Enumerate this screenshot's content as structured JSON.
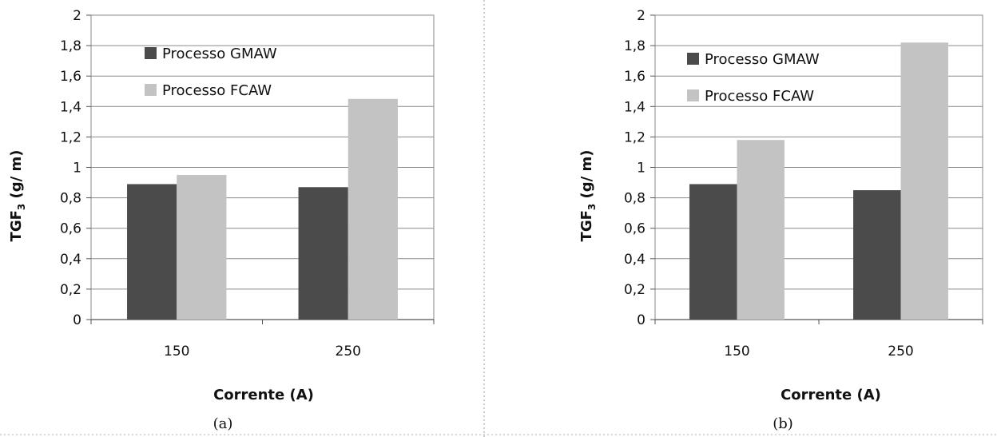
{
  "chart_data": [
    {
      "type": "bar",
      "panel_label": "(a)",
      "categories": [
        "150",
        "250"
      ],
      "series": [
        {
          "name": "Processo GMAW",
          "values": [
            0.89,
            0.87
          ],
          "color": "#4b4b4b"
        },
        {
          "name": "Processo FCAW",
          "values": [
            0.95,
            1.45
          ],
          "color": "#c3c3c3"
        }
      ],
      "xlabel": "Corrente (A)",
      "ylabel": {
        "main": "TGF",
        "sub": "3",
        "unit": "(g/ m)"
      },
      "ylim": [
        0,
        2
      ],
      "yticks": [
        "0",
        "0,2",
        "0,4",
        "0,6",
        "0,8",
        "1",
        "1,2",
        "1,4",
        "1,6",
        "1,8",
        "2"
      ],
      "grid": true,
      "legend": "top-left inside"
    },
    {
      "type": "bar",
      "panel_label": "(b)",
      "categories": [
        "150",
        "250"
      ],
      "series": [
        {
          "name": "Processo GMAW",
          "values": [
            0.89,
            0.85
          ],
          "color": "#4b4b4b"
        },
        {
          "name": "Processo FCAW",
          "values": [
            1.18,
            1.82
          ],
          "color": "#c3c3c3"
        }
      ],
      "xlabel": "Corrente (A)",
      "ylabel": {
        "main": "TGF",
        "sub": "3",
        "unit": "(g/ m)"
      },
      "ylim": [
        0,
        2
      ],
      "yticks": [
        "0",
        "0,2",
        "0,4",
        "0,6",
        "0,8",
        "1",
        "1,2",
        "1,4",
        "1,6",
        "1,8",
        "2"
      ],
      "grid": true,
      "legend": "top-left inside"
    }
  ]
}
